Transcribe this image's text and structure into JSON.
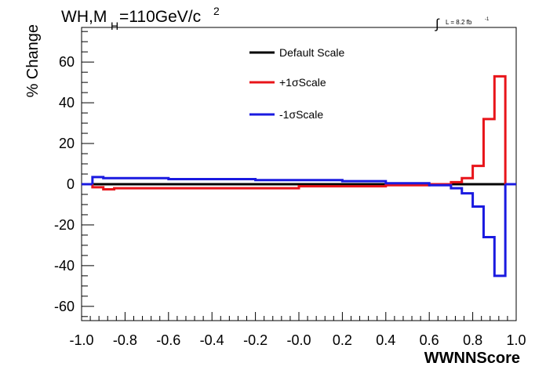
{
  "chart_data": {
    "type": "line",
    "title": {
      "main": "WH,M",
      "subscript": "H",
      "rest": "=110GeV/c",
      "superscript": "2"
    },
    "luminosity_label": {
      "integral": "∫",
      "text": "L = 8.2 fb",
      "superscript": "-1"
    },
    "xlabel": "WWNNScore",
    "ylabel": "% Change",
    "xlim": [
      -1.0,
      1.0
    ],
    "ylim": [
      -67,
      77
    ],
    "x_ticks": [
      -1.0,
      -0.8,
      -0.6,
      -0.4,
      -0.2,
      0.0,
      0.2,
      0.4,
      0.6,
      0.8,
      1.0
    ],
    "x_tick_labels": [
      "-1.0",
      "-0.8",
      "-0.6",
      "-0.4",
      "-0.2",
      "-0.0",
      "0.2",
      "0.4",
      "0.6",
      "0.8",
      "1.0"
    ],
    "y_ticks": [
      -60,
      -40,
      -20,
      0,
      20,
      40,
      60
    ],
    "y_tick_labels": [
      "-60",
      "-40",
      "-20",
      "0",
      "20",
      "40",
      "60"
    ],
    "legend_position": "top-center",
    "grid": false,
    "series": [
      {
        "name": "Default Scale",
        "color": "#000000",
        "bin_edges": [
          -0.95,
          0.95
        ],
        "values": [
          0
        ]
      },
      {
        "name": "+1σScale",
        "color": "#e8141a",
        "bin_edges": [
          -0.95,
          -0.9,
          -0.85,
          0.0,
          0.4,
          0.6,
          0.7,
          0.75,
          0.8,
          0.85,
          0.9,
          0.95
        ],
        "values": [
          -1.5,
          -2.5,
          -2,
          -1,
          -0.5,
          0,
          1,
          3,
          9,
          32,
          53
        ]
      },
      {
        "name": "-1σScale",
        "color": "#1a1ae0",
        "bin_edges": [
          -0.95,
          -0.9,
          -0.6,
          -0.2,
          0.2,
          0.4,
          0.6,
          0.7,
          0.75,
          0.8,
          0.85,
          0.9,
          0.95
        ],
        "values": [
          3.5,
          3,
          2.5,
          2,
          1.5,
          0.5,
          -0.5,
          -2,
          -4.5,
          -11,
          -26,
          -45
        ]
      }
    ]
  }
}
